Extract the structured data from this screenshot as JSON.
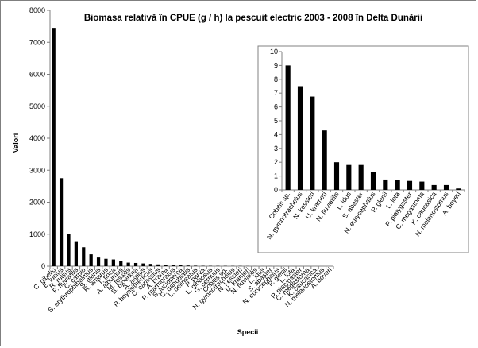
{
  "chart_data": [
    {
      "type": "bar",
      "title": "Biomasa relativă în CPUE (g / h) la pescuit electric 2003 - 2008 în Delta Dunării",
      "xlabel": "Specii",
      "ylabel": "Valori",
      "ylim": [
        0,
        8000
      ],
      "yticks": [
        0,
        1000,
        2000,
        3000,
        4000,
        5000,
        6000,
        7000,
        8000
      ],
      "grid": false,
      "legend": "none",
      "bar_color": "#000000",
      "categories": [
        "C. gibelio",
        "E. lucius",
        "R. rutilus",
        "P. fluviatilis",
        "C. carpio",
        "S. erythrophthalmus",
        "S. glanis",
        "R. amarus",
        "T. tinca",
        "A. alburnus",
        "M. fossilis",
        "B. bjoerkna",
        "A. aspius",
        "P. boyrisithenicus",
        "C. carassius",
        "A. brama",
        "P. marmoratus",
        "S. lucioperca",
        "C. danubialis",
        "L. delineatus",
        "P. parva",
        "L. gibbosus",
        "G. cernuus",
        "Cobitis sp.",
        "N. gymnotrachelus",
        "N. kessleri",
        "U. krameri",
        "N. fluviatilis",
        "L. idus",
        "S. abaster",
        "N. eurycephalus",
        "P. glenii",
        "L. lota",
        "P. platygaster",
        "C. megastoma",
        "K. caucasica",
        "N. melanostomus",
        "A. boyeri"
      ],
      "values": [
        7450,
        2750,
        1000,
        780,
        590,
        370,
        270,
        230,
        210,
        170,
        110,
        100,
        85,
        70,
        55,
        40,
        30,
        25,
        20,
        15,
        12,
        10,
        9,
        9,
        7.5,
        6.8,
        4.3,
        2,
        1.8,
        1.8,
        1.3,
        0.75,
        0.7,
        0.65,
        0.6,
        0.35,
        0.35,
        0.1
      ]
    },
    {
      "type": "bar",
      "title": "",
      "xlabel": "",
      "ylabel": "",
      "ylim": [
        0,
        10
      ],
      "yticks": [
        0,
        1,
        2,
        3,
        4,
        5,
        6,
        7,
        8,
        9,
        10
      ],
      "grid": false,
      "legend": "none",
      "bar_color": "#000000",
      "categories": [
        "Cobitis sp.",
        "N. gymnotrachelus",
        "N. kessleri",
        "U. krameri",
        "N. fluviatilis",
        "L. idus",
        "S. abaster",
        "N. eurycephalus",
        "P. glenii",
        "L. lota",
        "P. platygaster",
        "C. megastoma",
        "K. caucasica",
        "N. melanostomus",
        "A. boyeri"
      ],
      "values": [
        9,
        7.5,
        6.75,
        4.3,
        2,
        1.8,
        1.8,
        1.3,
        0.75,
        0.7,
        0.65,
        0.6,
        0.35,
        0.35,
        0.1
      ]
    }
  ]
}
